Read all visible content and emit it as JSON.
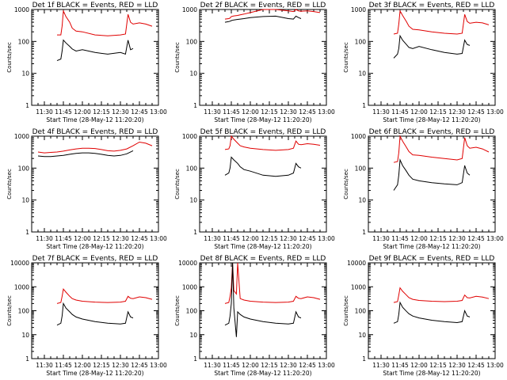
{
  "colors": {
    "events": "#000000",
    "lld": "#e00000",
    "axes": "#000000"
  },
  "chart_data": [
    {
      "type": "line",
      "title": "Det 1f BLACK = Events, RED = LLD",
      "xlabel": "Start Time (28-May-12 11:20:20)",
      "ylabel": "Counts/sec",
      "yscale": "log",
      "ylim": [
        1,
        1000
      ],
      "ytick_labels": [
        "1",
        "10",
        "100",
        "1000"
      ],
      "xlim": [
        "11:20",
        "13:00"
      ],
      "xtick_labels": [
        "11:30",
        "11:45",
        "12:00",
        "12:15",
        "12:30",
        "12:45",
        "13:00"
      ],
      "x": [
        "11:40",
        "11:43",
        "11:44",
        "11:45",
        "11:47",
        "11:50",
        "11:52",
        "11:55",
        "12:00",
        "12:10",
        "12:20",
        "12:30",
        "12:34",
        "12:36",
        "12:38",
        "12:40",
        "12:45",
        "12:50",
        "12:55"
      ],
      "series": [
        {
          "name": "Events",
          "values": [
            25,
            28,
            50,
            110,
            90,
            70,
            58,
            50,
            55,
            45,
            40,
            45,
            40,
            110,
            55,
            60,
            null,
            null,
            null
          ]
        },
        {
          "name": "LLD",
          "values": [
            160,
            160,
            300,
            900,
            600,
            400,
            260,
            210,
            200,
            160,
            150,
            160,
            170,
            700,
            400,
            350,
            380,
            350,
            300
          ]
        }
      ]
    },
    {
      "type": "line",
      "title": "Det 2f BLACK = Events, RED = LLD",
      "xlabel": "Start Time (28-May-12 11:20:20)",
      "ylabel": "Counts/sec",
      "yscale": "log",
      "ylim": [
        1,
        1000
      ],
      "ytick_labels": [
        "1",
        "10",
        "100",
        "1000"
      ],
      "xlim": [
        "11:20",
        "13:00"
      ],
      "xtick_labels": [
        "11:30",
        "11:45",
        "12:00",
        "12:15",
        "12:30",
        "12:45",
        "13:00"
      ],
      "x": [
        "11:40",
        "11:43",
        "11:44",
        "11:45",
        "11:47",
        "11:50",
        "11:52",
        "11:55",
        "12:00",
        "12:10",
        "12:20",
        "12:30",
        "12:34",
        "12:36",
        "12:38",
        "12:40",
        "12:45",
        "12:50",
        "12:55"
      ],
      "series": [
        {
          "name": "Events",
          "values": [
            400,
            420,
            430,
            450,
            470,
            490,
            500,
            520,
            560,
            600,
            620,
            520,
            500,
            620,
            560,
            520,
            null,
            null,
            null
          ]
        },
        {
          "name": "LLD",
          "values": [
            500,
            520,
            540,
            600,
            630,
            650,
            680,
            720,
            800,
            1200,
            1000,
            900,
            860,
            1000,
            900,
            880,
            900,
            860,
            800
          ]
        }
      ]
    },
    {
      "type": "line",
      "title": "Det 3f BLACK = Events, RED = LLD",
      "xlabel": "Start Time (28-May-12 11:20:20)",
      "ylabel": "Counts/sec",
      "yscale": "log",
      "ylim": [
        1,
        1000
      ],
      "ytick_labels": [
        "1",
        "10",
        "100",
        "1000"
      ],
      "xlim": [
        "11:20",
        "13:00"
      ],
      "xtick_labels": [
        "11:30",
        "11:45",
        "12:00",
        "12:15",
        "12:30",
        "12:45",
        "13:00"
      ],
      "x": [
        "11:40",
        "11:43",
        "11:44",
        "11:45",
        "11:47",
        "11:50",
        "11:52",
        "11:55",
        "12:00",
        "12:10",
        "12:20",
        "12:30",
        "12:34",
        "12:36",
        "12:38",
        "12:40",
        "12:45",
        "12:50",
        "12:55"
      ],
      "series": [
        {
          "name": "Events",
          "values": [
            30,
            40,
            60,
            150,
            110,
            80,
            65,
            60,
            70,
            55,
            45,
            40,
            42,
            110,
            80,
            75,
            null,
            null,
            null
          ]
        },
        {
          "name": "LLD",
          "values": [
            170,
            180,
            350,
            900,
            650,
            420,
            300,
            240,
            230,
            200,
            180,
            170,
            180,
            700,
            420,
            370,
            400,
            380,
            330
          ]
        }
      ]
    },
    {
      "type": "line",
      "title": "Det 4f BLACK = Events, RED = LLD",
      "xlabel": "Start Time (28-May-12 11:20:20)",
      "ylabel": "Counts/sec",
      "yscale": "log",
      "ylim": [
        1,
        1000
      ],
      "ytick_labels": [
        "1",
        "10",
        "100",
        "1000"
      ],
      "xlim": [
        "11:20",
        "13:00"
      ],
      "xtick_labels": [
        "11:30",
        "11:45",
        "12:00",
        "12:15",
        "12:30",
        "12:45",
        "13:00"
      ],
      "x": [
        "11:25",
        "11:30",
        "11:35",
        "11:40",
        "11:45",
        "11:50",
        "11:55",
        "12:00",
        "12:05",
        "12:10",
        "12:15",
        "12:20",
        "12:25",
        "12:30",
        "12:35",
        "12:40",
        "12:45",
        "12:50",
        "12:55"
      ],
      "series": [
        {
          "name": "Events",
          "values": [
            240,
            230,
            230,
            240,
            250,
            270,
            290,
            300,
            300,
            290,
            270,
            250,
            240,
            250,
            280,
            350,
            null,
            null,
            null
          ]
        },
        {
          "name": "LLD",
          "values": [
            320,
            300,
            310,
            320,
            340,
            370,
            400,
            420,
            420,
            410,
            380,
            350,
            340,
            360,
            400,
            500,
            650,
            600,
            500
          ]
        }
      ]
    },
    {
      "type": "line",
      "title": "Det 5f BLACK = Events, RED = LLD",
      "xlabel": "Start Time (28-May-12 11:20:20)",
      "ylabel": "Counts/sec",
      "yscale": "log",
      "ylim": [
        1,
        1000
      ],
      "ytick_labels": [
        "1",
        "10",
        "100",
        "1000"
      ],
      "xlim": [
        "11:20",
        "13:00"
      ],
      "xtick_labels": [
        "11:30",
        "11:45",
        "12:00",
        "12:15",
        "12:30",
        "12:45",
        "13:00"
      ],
      "x": [
        "11:40",
        "11:43",
        "11:44",
        "11:45",
        "11:47",
        "11:50",
        "11:52",
        "11:55",
        "12:00",
        "12:10",
        "12:20",
        "12:30",
        "12:34",
        "12:36",
        "12:38",
        "12:40",
        "12:45",
        "12:50",
        "12:55"
      ],
      "series": [
        {
          "name": "Events",
          "values": [
            60,
            70,
            100,
            220,
            180,
            140,
            110,
            90,
            80,
            60,
            55,
            60,
            70,
            140,
            110,
            100,
            null,
            null,
            null
          ]
        },
        {
          "name": "LLD",
          "values": [
            380,
            400,
            500,
            1000,
            800,
            600,
            500,
            460,
            420,
            380,
            360,
            380,
            420,
            700,
            560,
            540,
            580,
            560,
            520
          ]
        }
      ]
    },
    {
      "type": "line",
      "title": "Det 6f BLACK = Events, RED = LLD",
      "xlabel": "Start Time (28-May-12 11:20:20)",
      "ylabel": "Counts/sec",
      "yscale": "log",
      "ylim": [
        1,
        1000
      ],
      "ytick_labels": [
        "1",
        "10",
        "100",
        "1000"
      ],
      "xlim": [
        "11:20",
        "13:00"
      ],
      "xtick_labels": [
        "11:30",
        "11:45",
        "12:00",
        "12:15",
        "12:30",
        "12:45",
        "13:00"
      ],
      "x": [
        "11:40",
        "11:43",
        "11:44",
        "11:45",
        "11:47",
        "11:50",
        "11:52",
        "11:55",
        "12:00",
        "12:10",
        "12:20",
        "12:30",
        "12:34",
        "12:36",
        "12:38",
        "12:40",
        "12:45",
        "12:50",
        "12:55"
      ],
      "series": [
        {
          "name": "Events",
          "values": [
            20,
            30,
            60,
            180,
            120,
            80,
            60,
            45,
            40,
            35,
            32,
            30,
            35,
            120,
            70,
            60,
            null,
            null,
            null
          ]
        },
        {
          "name": "LLD",
          "values": [
            150,
            160,
            300,
            1000,
            700,
            450,
            330,
            260,
            250,
            220,
            200,
            180,
            200,
            900,
            500,
            420,
            450,
            400,
            320
          ]
        }
      ]
    },
    {
      "type": "line",
      "title": "Det 7f BLACK = Events, RED = LLD",
      "xlabel": "Start Time (28-May-12 11:20:20)",
      "ylabel": "Counts/sec",
      "yscale": "log",
      "ylim": [
        1,
        10000
      ],
      "ytick_labels": [
        "1",
        "10",
        "100",
        "1000",
        "10000"
      ],
      "xlim": [
        "11:20",
        "13:00"
      ],
      "xtick_labels": [
        "11:30",
        "11:45",
        "12:00",
        "12:15",
        "12:30",
        "12:45",
        "13:00"
      ],
      "x": [
        "11:40",
        "11:43",
        "11:44",
        "11:45",
        "11:47",
        "11:50",
        "11:52",
        "11:55",
        "12:00",
        "12:10",
        "12:20",
        "12:30",
        "12:34",
        "12:36",
        "12:38",
        "12:40",
        "12:45",
        "12:50",
        "12:55"
      ],
      "series": [
        {
          "name": "Events",
          "values": [
            25,
            30,
            60,
            200,
            130,
            90,
            70,
            55,
            45,
            35,
            30,
            28,
            30,
            90,
            55,
            50,
            null,
            null,
            null
          ]
        },
        {
          "name": "LLD",
          "values": [
            200,
            220,
            400,
            800,
            600,
            400,
            320,
            280,
            250,
            230,
            220,
            230,
            250,
            400,
            330,
            320,
            380,
            350,
            300
          ]
        }
      ]
    },
    {
      "type": "line",
      "title": "Det 8f BLACK = Events, RED = LLD",
      "xlabel": "Start Time (28-May-12 11:20:20)",
      "ylabel": "Counts/sec",
      "yscale": "log",
      "ylim": [
        1,
        10000
      ],
      "ytick_labels": [
        "1",
        "10",
        "100",
        "1000",
        "10000"
      ],
      "xlim": [
        "11:20",
        "13:00"
      ],
      "xtick_labels": [
        "11:30",
        "11:45",
        "12:00",
        "12:15",
        "12:30",
        "12:45",
        "13:00"
      ],
      "x": [
        "11:40",
        "11:43",
        "11:44",
        "11:45",
        "11:46",
        "11:47",
        "11:49",
        "11:50",
        "11:52",
        "11:55",
        "12:00",
        "12:10",
        "12:20",
        "12:30",
        "12:34",
        "12:36",
        "12:38",
        "12:40",
        "12:45",
        "12:50",
        "12:55"
      ],
      "series": [
        {
          "name": "Events",
          "values": [
            25,
            30,
            60,
            200,
            10000,
            130,
            8,
            90,
            70,
            55,
            45,
            35,
            30,
            28,
            30,
            90,
            55,
            50,
            null,
            null,
            null
          ]
        },
        {
          "name": "LLD",
          "values": [
            200,
            220,
            400,
            900,
            10000,
            700,
            500,
            10000,
            320,
            280,
            250,
            230,
            220,
            230,
            250,
            400,
            330,
            320,
            380,
            350,
            300
          ]
        }
      ]
    },
    {
      "type": "line",
      "title": "Det 9f BLACK = Events, RED = LLD",
      "xlabel": "Start Time (28-May-12 11:20:20)",
      "ylabel": "Counts/sec",
      "yscale": "log",
      "ylim": [
        1,
        10000
      ],
      "ytick_labels": [
        "1",
        "10",
        "100",
        "1000",
        "10000"
      ],
      "xlim": [
        "11:20",
        "13:00"
      ],
      "xtick_labels": [
        "11:30",
        "11:45",
        "12:00",
        "12:15",
        "12:30",
        "12:45",
        "13:00"
      ],
      "x": [
        "11:40",
        "11:43",
        "11:44",
        "11:45",
        "11:47",
        "11:50",
        "11:52",
        "11:55",
        "12:00",
        "12:10",
        "12:20",
        "12:30",
        "12:34",
        "12:36",
        "12:38",
        "12:40",
        "12:45",
        "12:50",
        "12:55"
      ],
      "series": [
        {
          "name": "Events",
          "values": [
            30,
            35,
            70,
            220,
            140,
            95,
            75,
            60,
            50,
            40,
            35,
            32,
            35,
            100,
            60,
            55,
            null,
            null,
            null
          ]
        },
        {
          "name": "LLD",
          "values": [
            220,
            240,
            450,
            900,
            650,
            450,
            350,
            300,
            270,
            250,
            240,
            250,
            270,
            450,
            350,
            340,
            400,
            370,
            320
          ]
        }
      ]
    }
  ]
}
